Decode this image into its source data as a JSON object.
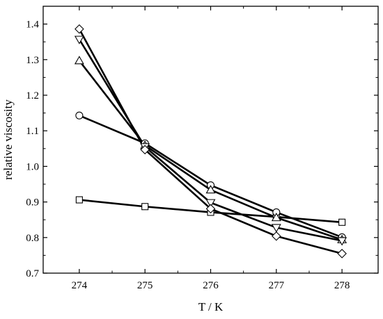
{
  "chart_data": {
    "type": "line",
    "xlabel": "T / K",
    "ylabel": "relative viscosity",
    "xlim": [
      273.45,
      278.55
    ],
    "ylim": [
      0.7,
      1.45
    ],
    "xticks": [
      274,
      275,
      276,
      277,
      278
    ],
    "yticks": [
      0.7,
      0.8,
      0.9,
      1.0,
      1.1,
      1.2,
      1.3,
      1.4
    ],
    "xtick_labels": [
      "274",
      "275",
      "276",
      "277",
      "278"
    ],
    "ytick_labels": [
      "0.7",
      "0.8",
      "0.9",
      "1.0",
      "1.1",
      "1.2",
      "1.3",
      "1.4"
    ],
    "grid": false,
    "x": [
      274,
      275,
      276,
      277,
      278
    ],
    "series": [
      {
        "marker": "square",
        "values": [
          0.906,
          0.887,
          0.871,
          0.858,
          0.843
        ]
      },
      {
        "marker": "circle",
        "values": [
          1.143,
          1.065,
          0.947,
          0.871,
          0.801
        ]
      },
      {
        "marker": "triangle-up",
        "values": [
          1.297,
          1.059,
          0.934,
          0.856,
          0.794
        ]
      },
      {
        "marker": "triangle-down",
        "values": [
          1.357,
          1.055,
          0.898,
          0.828,
          0.791
        ]
      },
      {
        "marker": "diamond",
        "values": [
          1.386,
          1.047,
          0.881,
          0.804,
          0.755
        ]
      }
    ],
    "colors": {
      "line": "#000000",
      "marker_fill": "#ffffff"
    }
  }
}
